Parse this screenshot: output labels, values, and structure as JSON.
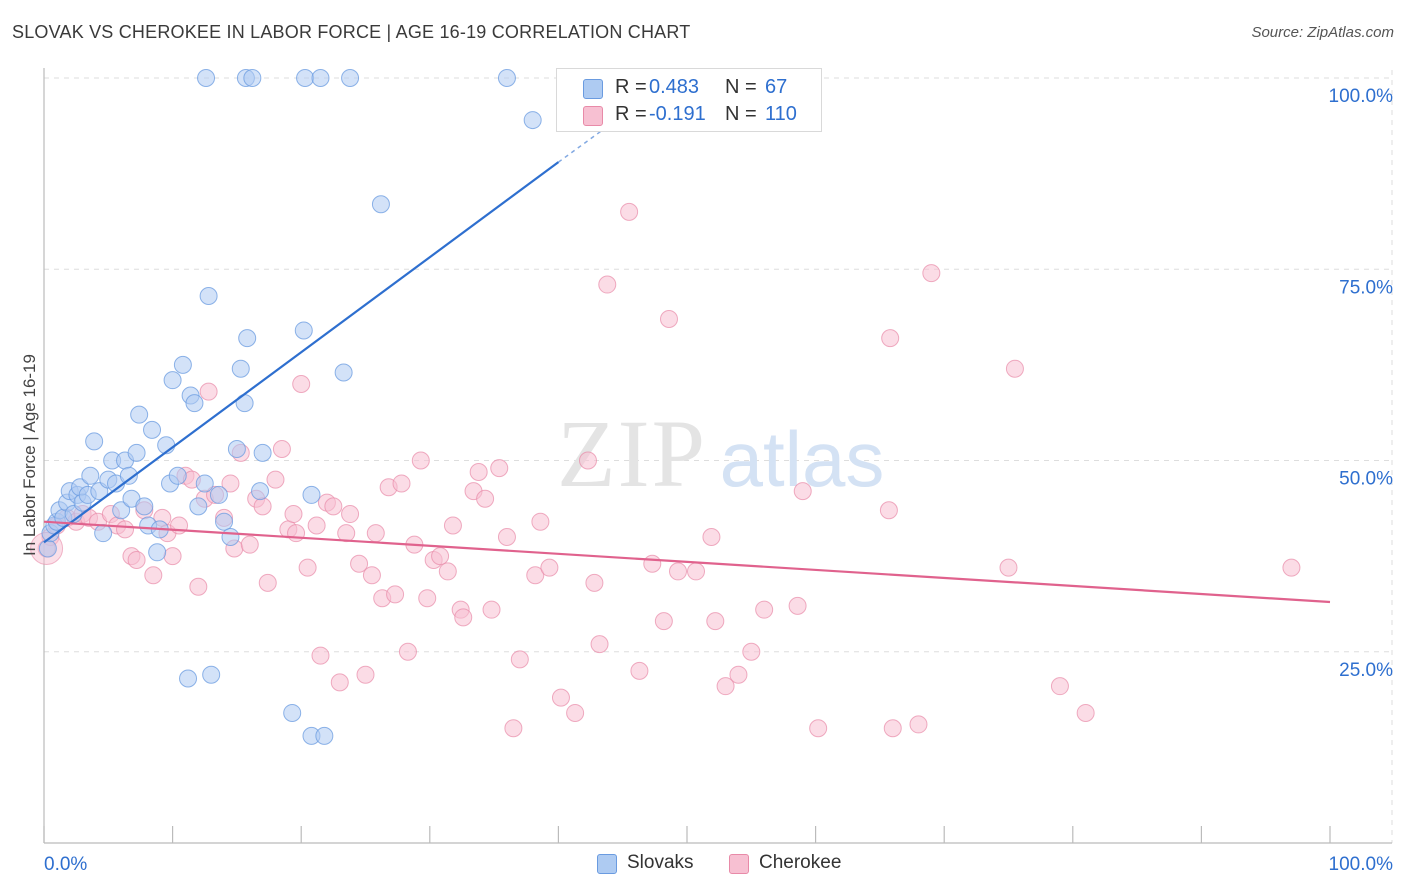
{
  "title": "SLOVAK VS CHEROKEE IN LABOR FORCE | AGE 16-19 CORRELATION CHART",
  "source": "Source: ZipAtlas.com",
  "watermark": {
    "zip": "ZIP",
    "atlas": "atlas"
  },
  "legend": {
    "slovak": {
      "r_label": "R =",
      "r_value": "0.483",
      "n_label": "N =",
      "n_value": "67"
    },
    "cherokee": {
      "r_label": "R =",
      "r_value": "-0.191",
      "n_label": "N =",
      "n_value": "110"
    }
  },
  "colors": {
    "slovak_fill": "#aecbf2",
    "slovak_stroke": "#6a9be0",
    "slovak_line": "#2e6fcf",
    "cherokee_fill": "#f7c0d2",
    "cherokee_stroke": "#e88aa8",
    "cherokee_line": "#e0628d",
    "axis_text": "#2e6fcf",
    "grid": "#dddddd"
  },
  "chart_data": {
    "type": "scatter",
    "title": "SLOVAK VS CHEROKEE IN LABOR FORCE | AGE 16-19 CORRELATION CHART",
    "xlabel": "",
    "ylabel": "In Labor Force | Age 16-19",
    "xlim": [
      0,
      100
    ],
    "ylim": [
      0,
      102
    ],
    "x_tick_labels": [
      "0.0%",
      "100.0%"
    ],
    "y_tick_labels": [
      "25.0%",
      "50.0%",
      "75.0%",
      "100.0%"
    ],
    "y_ticks": [
      25,
      50,
      75,
      100
    ],
    "grid": true,
    "legend_position": "top-center",
    "series": [
      {
        "name": "Slovaks",
        "r": 0.483,
        "n": 67,
        "trend": {
          "x": [
            0,
            40
          ],
          "y": [
            39.3,
            89.0
          ],
          "dashed_to": [
            44.5,
            94.5
          ]
        },
        "points": [
          [
            0.3,
            38.5
          ],
          [
            0.5,
            40.5
          ],
          [
            0.8,
            41.5
          ],
          [
            1.0,
            42.0
          ],
          [
            1.2,
            43.5
          ],
          [
            1.5,
            42.5
          ],
          [
            1.8,
            44.5
          ],
          [
            2.0,
            46.0
          ],
          [
            2.3,
            43.0
          ],
          [
            2.6,
            45.5
          ],
          [
            2.8,
            46.5
          ],
          [
            3.0,
            44.5
          ],
          [
            3.4,
            45.5
          ],
          [
            3.6,
            48.0
          ],
          [
            3.9,
            52.5
          ],
          [
            4.3,
            46.0
          ],
          [
            4.6,
            40.5
          ],
          [
            5.0,
            47.5
          ],
          [
            5.3,
            50.0
          ],
          [
            5.6,
            47.0
          ],
          [
            6.0,
            43.5
          ],
          [
            6.3,
            50.0
          ],
          [
            6.6,
            48.0
          ],
          [
            6.8,
            45.0
          ],
          [
            7.2,
            51.0
          ],
          [
            7.4,
            56.0
          ],
          [
            7.8,
            44.0
          ],
          [
            8.1,
            41.5
          ],
          [
            8.4,
            54.0
          ],
          [
            8.8,
            38.0
          ],
          [
            9.0,
            41.0
          ],
          [
            9.5,
            52.0
          ],
          [
            9.8,
            47.0
          ],
          [
            10.0,
            60.5
          ],
          [
            10.4,
            48.0
          ],
          [
            10.8,
            62.5
          ],
          [
            11.2,
            21.5
          ],
          [
            11.4,
            58.5
          ],
          [
            11.7,
            57.5
          ],
          [
            12.0,
            44.0
          ],
          [
            12.5,
            47.0
          ],
          [
            12.8,
            71.5
          ],
          [
            13.0,
            22.0
          ],
          [
            13.6,
            45.5
          ],
          [
            14.0,
            42.0
          ],
          [
            14.5,
            40.0
          ],
          [
            15.0,
            51.5
          ],
          [
            15.3,
            62.0
          ],
          [
            15.6,
            57.5
          ],
          [
            15.8,
            66.0
          ],
          [
            16.8,
            46.0
          ],
          [
            17.0,
            51.0
          ],
          [
            19.3,
            17.0
          ],
          [
            20.2,
            67.0
          ],
          [
            20.8,
            45.5
          ],
          [
            20.8,
            14.0
          ],
          [
            21.8,
            14.0
          ],
          [
            23.3,
            61.5
          ],
          [
            26.2,
            83.5
          ],
          [
            12.6,
            100
          ],
          [
            15.7,
            100
          ],
          [
            16.2,
            100
          ],
          [
            20.3,
            100
          ],
          [
            21.5,
            100
          ],
          [
            23.8,
            100
          ],
          [
            36.0,
            100
          ],
          [
            38.0,
            94.5
          ]
        ]
      },
      {
        "name": "Cherokee",
        "r": -0.191,
        "n": 110,
        "trend": {
          "x": [
            0,
            100
          ],
          "y": [
            42.0,
            31.5
          ]
        },
        "points": [
          [
            0.2,
            38.5
          ],
          [
            0.5,
            40.0
          ],
          [
            1.0,
            41.5
          ],
          [
            1.8,
            42.5
          ],
          [
            2.5,
            42.0
          ],
          [
            3.0,
            43.0
          ],
          [
            3.5,
            42.5
          ],
          [
            4.2,
            42.0
          ],
          [
            5.2,
            43.0
          ],
          [
            5.7,
            41.5
          ],
          [
            6.3,
            41.0
          ],
          [
            6.8,
            37.5
          ],
          [
            7.2,
            37.0
          ],
          [
            7.8,
            43.5
          ],
          [
            8.5,
            35.0
          ],
          [
            9.2,
            42.5
          ],
          [
            9.6,
            40.5
          ],
          [
            10.0,
            37.5
          ],
          [
            10.5,
            41.5
          ],
          [
            11.0,
            48.0
          ],
          [
            11.5,
            47.5
          ],
          [
            12.0,
            33.5
          ],
          [
            12.5,
            45.0
          ],
          [
            12.8,
            59.0
          ],
          [
            13.3,
            45.5
          ],
          [
            14.0,
            42.5
          ],
          [
            14.5,
            47.0
          ],
          [
            14.8,
            38.5
          ],
          [
            15.3,
            51.0
          ],
          [
            16.0,
            39.0
          ],
          [
            16.5,
            45.0
          ],
          [
            17.0,
            44.0
          ],
          [
            17.4,
            34.0
          ],
          [
            18.0,
            47.5
          ],
          [
            18.5,
            51.5
          ],
          [
            19.0,
            41.0
          ],
          [
            19.4,
            43.0
          ],
          [
            19.6,
            40.5
          ],
          [
            20.0,
            60.0
          ],
          [
            20.5,
            36.0
          ],
          [
            21.2,
            41.5
          ],
          [
            21.5,
            24.5
          ],
          [
            22.0,
            44.5
          ],
          [
            22.5,
            44.0
          ],
          [
            23.0,
            21.0
          ],
          [
            23.5,
            40.5
          ],
          [
            23.8,
            43.0
          ],
          [
            24.5,
            36.5
          ],
          [
            25.0,
            22.0
          ],
          [
            25.5,
            35.0
          ],
          [
            25.8,
            40.5
          ],
          [
            26.3,
            32.0
          ],
          [
            26.8,
            46.5
          ],
          [
            27.3,
            32.5
          ],
          [
            27.8,
            47.0
          ],
          [
            28.3,
            25.0
          ],
          [
            28.8,
            39.0
          ],
          [
            29.3,
            50.0
          ],
          [
            29.8,
            32.0
          ],
          [
            30.3,
            37.0
          ],
          [
            30.8,
            37.5
          ],
          [
            31.4,
            35.5
          ],
          [
            31.8,
            41.5
          ],
          [
            32.4,
            30.5
          ],
          [
            32.6,
            29.5
          ],
          [
            33.4,
            46.0
          ],
          [
            33.8,
            48.5
          ],
          [
            34.3,
            45.0
          ],
          [
            34.8,
            30.5
          ],
          [
            35.4,
            49.0
          ],
          [
            36.0,
            40.0
          ],
          [
            37.0,
            24.0
          ],
          [
            38.2,
            35.0
          ],
          [
            38.6,
            42.0
          ],
          [
            39.3,
            36.0
          ],
          [
            40.2,
            19.0
          ],
          [
            41.3,
            17.0
          ],
          [
            42.3,
            50.0
          ],
          [
            42.8,
            34.0
          ],
          [
            43.2,
            26.0
          ],
          [
            43.8,
            73.0
          ],
          [
            45.5,
            82.5
          ],
          [
            46.3,
            22.5
          ],
          [
            47.3,
            36.5
          ],
          [
            48.2,
            29.0
          ],
          [
            48.6,
            68.5
          ],
          [
            49.3,
            35.5
          ],
          [
            50.7,
            35.5
          ],
          [
            51.9,
            40.0
          ],
          [
            52.2,
            29.0
          ],
          [
            53.0,
            20.5
          ],
          [
            54.0,
            22.0
          ],
          [
            55.0,
            25.0
          ],
          [
            56.0,
            30.5
          ],
          [
            58.6,
            31.0
          ],
          [
            59.0,
            46.0
          ],
          [
            60.2,
            15.0
          ],
          [
            65.7,
            43.5
          ],
          [
            65.8,
            66.0
          ],
          [
            66.0,
            15.0
          ],
          [
            68.0,
            15.5
          ],
          [
            69.0,
            74.5
          ],
          [
            75.0,
            36.0
          ],
          [
            75.5,
            62.0
          ],
          [
            79.0,
            20.5
          ],
          [
            81.0,
            17.0
          ],
          [
            97.0,
            36.0
          ],
          [
            36.5,
            15.0
          ]
        ]
      }
    ]
  },
  "bottom_legend": {
    "slovaks": "Slovaks",
    "cherokee": "Cherokee"
  }
}
